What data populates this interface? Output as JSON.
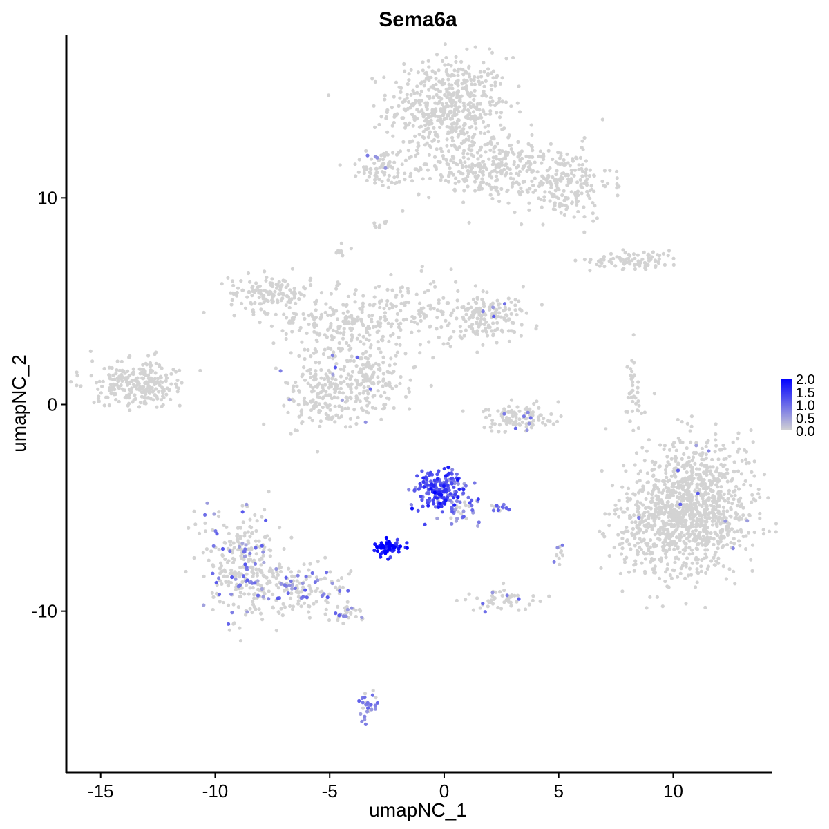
{
  "chart_data": {
    "type": "scatter",
    "title": "Sema6a",
    "xlabel": "umapNC_1",
    "ylabel": "umapNC_2",
    "xlim": [
      -16.5,
      14.3
    ],
    "ylim": [
      -17.8,
      17.9
    ],
    "x_ticks": [
      -15,
      -10,
      -5,
      0,
      5,
      10
    ],
    "x_tick_labels": [
      "-15",
      "-10",
      "-5",
      "0",
      "5",
      "10"
    ],
    "y_ticks": [
      -10,
      0,
      10
    ],
    "y_tick_labels": [
      "-10",
      "0",
      "10"
    ],
    "grid": false,
    "legend": {
      "position": "right",
      "colormap": {
        "low": "#d3d3d3",
        "high": "#0000ff"
      },
      "range": [
        0,
        2.0
      ],
      "breaks": [
        0.0,
        0.5,
        1.0,
        1.5,
        2.0
      ],
      "labels": [
        "0.0",
        "0.5",
        "1.0",
        "1.5",
        "2.0"
      ]
    },
    "clusters": [
      {
        "cx": 0.2,
        "cy": 14.4,
        "sx": 1.3,
        "sy": 1.2,
        "n": 520,
        "expr": 0.0
      },
      {
        "cx": 1.8,
        "cy": 11.5,
        "sx": 1.4,
        "sy": 0.7,
        "n": 260,
        "expr": 0.0
      },
      {
        "cx": 5.1,
        "cy": 10.7,
        "sx": 1.1,
        "sy": 0.9,
        "n": 220,
        "expr": 0.0
      },
      {
        "cx": -2.6,
        "cy": 11.5,
        "sx": 0.7,
        "sy": 0.5,
        "n": 80,
        "expr": 0.05
      },
      {
        "cx": 8.4,
        "cy": 7.0,
        "sx": 1.0,
        "sy": 0.22,
        "n": 90,
        "expr": 0.0
      },
      {
        "cx": -7.6,
        "cy": 5.4,
        "sx": 0.9,
        "sy": 0.45,
        "n": 130,
        "expr": 0.0
      },
      {
        "cx": -4.9,
        "cy": 3.9,
        "sx": 1.3,
        "sy": 0.8,
        "n": 160,
        "expr": 0.0
      },
      {
        "cx": -1.8,
        "cy": 4.3,
        "sx": 1.4,
        "sy": 0.9,
        "n": 150,
        "expr": 0.0
      },
      {
        "cx": 1.8,
        "cy": 4.2,
        "sx": 0.9,
        "sy": 0.6,
        "n": 170,
        "expr": 0.02
      },
      {
        "cx": -13.4,
        "cy": 1.0,
        "sx": 1.0,
        "sy": 0.55,
        "n": 260,
        "expr": 0.0
      },
      {
        "cx": -5.2,
        "cy": 0.6,
        "sx": 1.0,
        "sy": 0.9,
        "n": 200,
        "expr": 0.05
      },
      {
        "cx": -3.4,
        "cy": 1.2,
        "sx": 0.9,
        "sy": 0.8,
        "n": 150,
        "expr": 0.0
      },
      {
        "cx": 3.3,
        "cy": -0.6,
        "sx": 0.9,
        "sy": 0.35,
        "n": 110,
        "expr": 0.05
      },
      {
        "cx": 8.2,
        "cy": 0.3,
        "sx": 0.25,
        "sy": 1.2,
        "n": 40,
        "expr": 0.0
      },
      {
        "cx": 11.0,
        "cy": -4.9,
        "sx": 1.2,
        "sy": 1.6,
        "n": 900,
        "expr": 0.01
      },
      {
        "cx": 9.2,
        "cy": -6.1,
        "sx": 0.9,
        "sy": 1.2,
        "n": 260,
        "expr": 0.0
      },
      {
        "cx": -0.2,
        "cy": -4.1,
        "sx": 0.55,
        "sy": 0.55,
        "n": 190,
        "expr": 1.2
      },
      {
        "cx": 0.8,
        "cy": -5.0,
        "sx": 0.35,
        "sy": 0.45,
        "n": 40,
        "expr": 0.8
      },
      {
        "cx": -2.4,
        "cy": -6.9,
        "sx": 0.35,
        "sy": 0.18,
        "n": 70,
        "expr": 1.75
      },
      {
        "cx": -8.8,
        "cy": -7.8,
        "sx": 0.85,
        "sy": 1.3,
        "n": 280,
        "expr": 0.25
      },
      {
        "cx": -6.4,
        "cy": -8.9,
        "sx": 1.0,
        "sy": 0.6,
        "n": 150,
        "expr": 0.25
      },
      {
        "cx": -4.3,
        "cy": -10.1,
        "sx": 0.4,
        "sy": 0.2,
        "n": 30,
        "expr": 0.5
      },
      {
        "cx": 2.5,
        "cy": -9.5,
        "sx": 0.7,
        "sy": 0.3,
        "n": 50,
        "expr": 0.05
      },
      {
        "cx": -3.3,
        "cy": -14.8,
        "sx": 0.2,
        "sy": 0.4,
        "n": 30,
        "expr": 0.9
      },
      {
        "cx": 2.6,
        "cy": -5.0,
        "sx": 0.25,
        "sy": 0.1,
        "n": 14,
        "expr": 0.8
      },
      {
        "cx": 5.0,
        "cy": -7.3,
        "sx": 0.12,
        "sy": 0.25,
        "n": 12,
        "expr": 0.4
      },
      {
        "cx": -4.5,
        "cy": 7.4,
        "sx": 0.15,
        "sy": 0.15,
        "n": 10,
        "expr": 0.0
      },
      {
        "cx": -2.8,
        "cy": 8.7,
        "sx": 0.2,
        "sy": 0.1,
        "n": 8,
        "expr": 0.0
      }
    ]
  }
}
